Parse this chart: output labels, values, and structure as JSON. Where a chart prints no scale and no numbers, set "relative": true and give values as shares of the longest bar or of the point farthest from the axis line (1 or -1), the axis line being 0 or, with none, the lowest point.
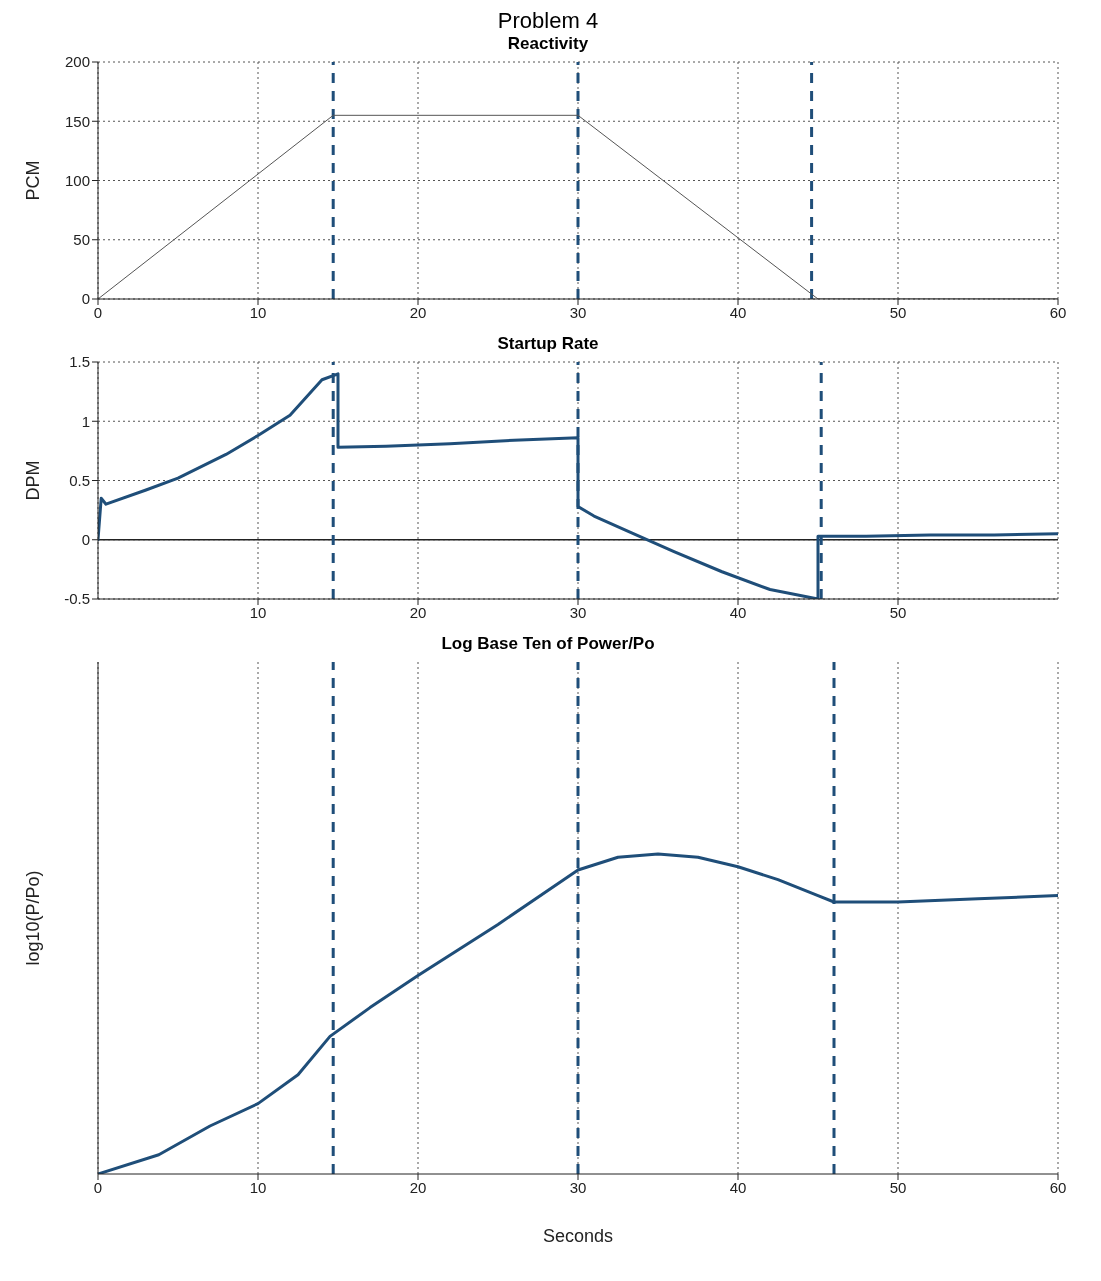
{
  "chart_data": [
    {
      "type": "line",
      "title": "Problem 4",
      "subtitle": "Reactivity",
      "ylabel": "PCM",
      "x": [
        0,
        14.7,
        30,
        45,
        60
      ],
      "values": [
        0,
        155,
        155,
        0,
        0
      ],
      "color": "#555555",
      "xlim": [
        0,
        60
      ],
      "xticks": [
        0,
        10,
        20,
        30,
        40,
        50,
        60
      ],
      "ylim": [
        0,
        200
      ],
      "yticks": [
        0,
        50,
        100,
        150,
        200
      ],
      "grid": true,
      "legend": false,
      "ref_lines": [
        {
          "axis": "x",
          "value": 14.7,
          "color": "#1f4e79",
          "line_style": "dashed"
        },
        {
          "axis": "x",
          "value": 30,
          "color": "#1f4e79",
          "line_style": "dashed"
        },
        {
          "axis": "x",
          "value": 44.6,
          "color": "#1f4e79",
          "line_style": "dashed"
        }
      ]
    },
    {
      "type": "line",
      "title": "Startup Rate",
      "ylabel": "DPM",
      "x": [
        0,
        0.2,
        0.5,
        3,
        5,
        8,
        10,
        12,
        14,
        15,
        15,
        18,
        22,
        26,
        30,
        30,
        31,
        33,
        36,
        39,
        42,
        45,
        45,
        48,
        52,
        56,
        60
      ],
      "values": [
        0,
        0.35,
        0.3,
        0.42,
        0.52,
        0.72,
        0.88,
        1.05,
        1.35,
        1.4,
        0.78,
        0.79,
        0.81,
        0.84,
        0.86,
        0.28,
        0.2,
        0.08,
        -0.1,
        -0.27,
        -0.42,
        -0.5,
        0.03,
        0.03,
        0.04,
        0.04,
        0.05
      ],
      "color": "#1f4e79",
      "xlim": [
        0,
        60
      ],
      "xticks": [
        10,
        20,
        30,
        40,
        50
      ],
      "ylim": [
        -0.5,
        1.5
      ],
      "yticks": [
        -0.5,
        0,
        0.5,
        1,
        1.5
      ],
      "grid": true,
      "legend": false,
      "ref_lines": [
        {
          "axis": "x",
          "value": 14.7,
          "color": "#1f4e79",
          "line_style": "dashed"
        },
        {
          "axis": "x",
          "value": 30,
          "color": "#1f4e79",
          "line_style": "dashed"
        },
        {
          "axis": "x",
          "value": 45.2,
          "color": "#1f4e79",
          "line_style": "dashed"
        }
      ]
    },
    {
      "type": "line",
      "title": "Log Base Ten of Power/Po",
      "xlabel": "Seconds",
      "ylabel": "log10(P/Po)",
      "relative": true,
      "x": [
        0,
        3.8,
        7,
        10,
        12.5,
        14.5,
        17,
        20,
        25,
        30,
        32.5,
        35,
        37.5,
        40,
        42.5,
        45,
        46,
        50,
        55,
        60
      ],
      "values": [
        0,
        0.06,
        0.15,
        0.22,
        0.31,
        0.43,
        0.52,
        0.62,
        0.78,
        0.95,
        0.99,
        1,
        0.99,
        0.96,
        0.92,
        0.87,
        0.85,
        0.85,
        0.86,
        0.87
      ],
      "color": "#1f4e79",
      "xlim": [
        0,
        60
      ],
      "xticks": [
        0,
        10,
        20,
        30,
        40,
        50,
        60
      ],
      "grid": "x",
      "legend": false,
      "ref_lines": [
        {
          "axis": "x",
          "value": 14.7,
          "color": "#1f4e79",
          "line_style": "dashed"
        },
        {
          "axis": "x",
          "value": 30,
          "color": "#1f4e79",
          "line_style": "dashed"
        },
        {
          "axis": "x",
          "value": 46,
          "color": "#1f4e79",
          "line_style": "dashed"
        }
      ]
    }
  ]
}
